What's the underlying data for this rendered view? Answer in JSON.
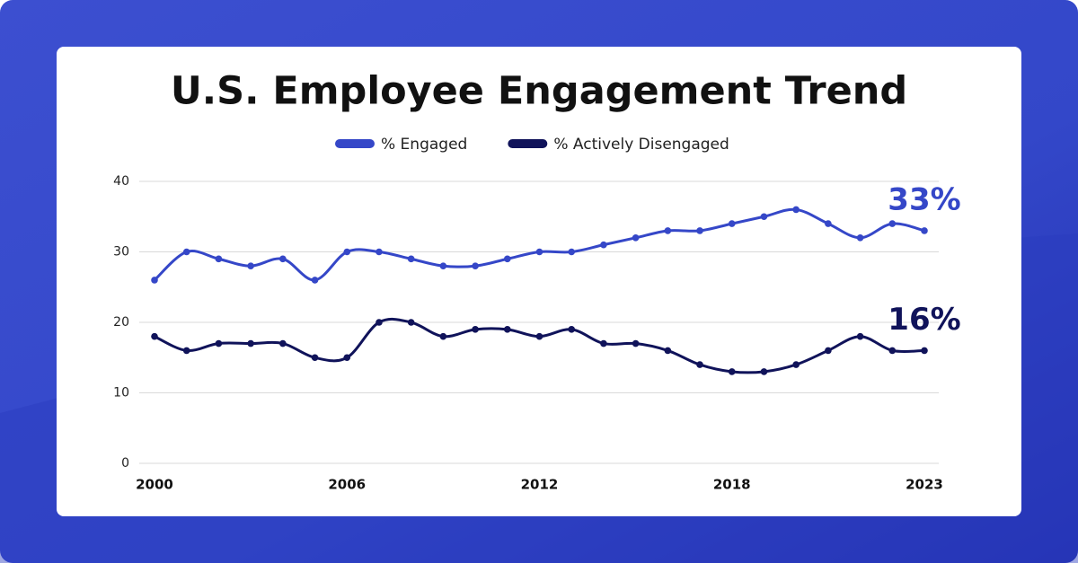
{
  "chart_data": {
    "type": "line",
    "title": "U.S. Employee Engagement Trend",
    "categories": [
      "2000",
      null,
      null,
      null,
      null,
      null,
      "2006",
      null,
      null,
      null,
      null,
      null,
      "2012",
      null,
      null,
      null,
      null,
      null,
      "2018",
      null,
      null,
      null,
      null,
      null,
      "2023"
    ],
    "series": [
      {
        "name": "% Engaged",
        "color": "#3547c8",
        "values": [
          26,
          30,
          29,
          28,
          29,
          26,
          30,
          30,
          29,
          28,
          28,
          29,
          30,
          30,
          31,
          32,
          33,
          33,
          34,
          35,
          36,
          34,
          32,
          34,
          33
        ]
      },
      {
        "name": "% Actively Disengaged",
        "color": "#10135a",
        "values": [
          18,
          16,
          17,
          17,
          17,
          15,
          15,
          20,
          20,
          18,
          19,
          19,
          18,
          19,
          17,
          17,
          16,
          14,
          13,
          13,
          14,
          16,
          18,
          16,
          16
        ]
      }
    ],
    "annotations": [
      {
        "text": "33%"
      },
      {
        "text": "16%"
      }
    ],
    "ylim": [
      0,
      40
    ],
    "yticks": [
      0,
      10,
      20,
      30,
      40
    ],
    "grid": true,
    "legend": "top"
  }
}
